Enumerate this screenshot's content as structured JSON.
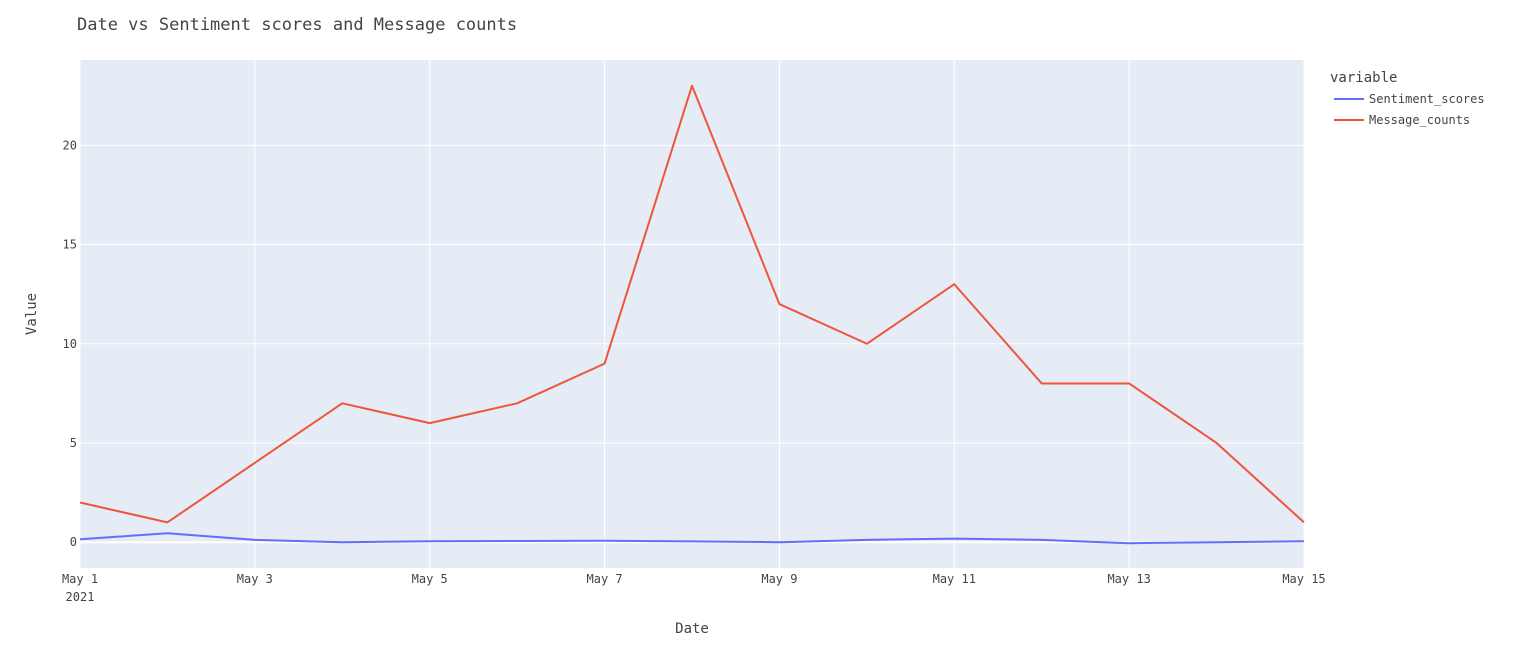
{
  "chart_data": {
    "type": "line",
    "title": "Date vs Sentiment scores and Message counts",
    "xlabel": "Date",
    "ylabel": "Value",
    "x": [
      "2021-05-01",
      "2021-05-02",
      "2021-05-03",
      "2021-05-04",
      "2021-05-05",
      "2021-05-06",
      "2021-05-07",
      "2021-05-08",
      "2021-05-09",
      "2021-05-10",
      "2021-05-11",
      "2021-05-12",
      "2021-05-13",
      "2021-05-14",
      "2021-05-15"
    ],
    "x_ticks": [
      {
        "value": "2021-05-01",
        "label": "May 1",
        "sublabel": "2021"
      },
      {
        "value": "2021-05-03",
        "label": "May 3"
      },
      {
        "value": "2021-05-05",
        "label": "May 5"
      },
      {
        "value": "2021-05-07",
        "label": "May 7"
      },
      {
        "value": "2021-05-09",
        "label": "May 9"
      },
      {
        "value": "2021-05-11",
        "label": "May 11"
      },
      {
        "value": "2021-05-13",
        "label": "May 13"
      },
      {
        "value": "2021-05-15",
        "label": "May 15"
      }
    ],
    "y_ticks": [
      0,
      5,
      10,
      15,
      20
    ],
    "xlim": [
      "2021-05-01",
      "2021-05-15"
    ],
    "ylim": [
      -1.3,
      24.3
    ],
    "grid": true,
    "legend": {
      "title": "variable",
      "position": "right"
    },
    "series": [
      {
        "name": "Sentiment_scores",
        "color": "#636efa",
        "values": [
          0.15,
          0.45,
          0.12,
          0.0,
          0.05,
          0.06,
          0.07,
          0.04,
          0.0,
          0.12,
          0.18,
          0.12,
          -0.05,
          0.0,
          0.05
        ]
      },
      {
        "name": "Message_counts",
        "color": "#ef553b",
        "values": [
          2,
          1,
          4,
          7,
          6,
          7,
          9,
          23,
          12,
          10,
          13,
          8,
          8,
          5,
          1
        ]
      }
    ]
  }
}
